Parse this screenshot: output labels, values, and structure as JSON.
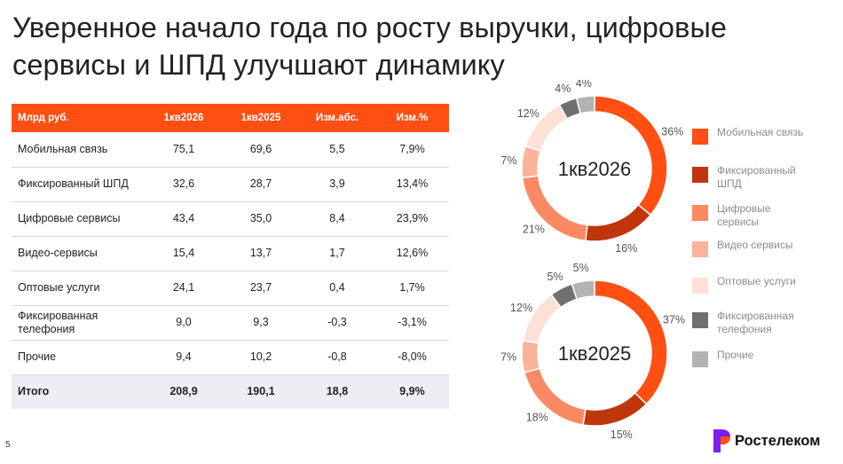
{
  "title": "Уверенное начало года по росту выручки, цифровые сервисы и ШПД улучшают динамику",
  "page_number": "5",
  "logo_text": "Ростелеком",
  "table": {
    "headers": [
      "Млрд руб.",
      "1кв2026",
      "1кв2025",
      "Изм.абс.",
      "Изм.%"
    ],
    "rows": [
      {
        "label": "Мобильная связь",
        "q2026": "75,1",
        "q2025": "69,6",
        "abs": "5,5",
        "pct": "7,9%"
      },
      {
        "label": "Фиксированный ШПД",
        "q2026": "32,6",
        "q2025": "28,7",
        "abs": "3,9",
        "pct": "13,4%"
      },
      {
        "label": "Цифровые сервисы",
        "q2026": "43,4",
        "q2025": "35,0",
        "abs": "8,4",
        "pct": "23,9%"
      },
      {
        "label": "Видео-сервисы",
        "q2026": "15,4",
        "q2025": "13,7",
        "abs": "1,7",
        "pct": "12,6%"
      },
      {
        "label": "Оптовые услуги",
        "q2026": "24,1",
        "q2025": "23,7",
        "abs": "0,4",
        "pct": "1,7%"
      },
      {
        "label": "Фиксированная телефония",
        "q2026": "9,0",
        "q2025": "9,3",
        "abs": "-0,3",
        "pct": "-3,1%"
      },
      {
        "label": "Прочие",
        "q2026": "9,4",
        "q2025": "10,2",
        "abs": "-0,8",
        "pct": "-8,0%"
      }
    ],
    "total": {
      "label": "Итого",
      "q2026": "208,9",
      "q2025": "190,1",
      "abs": "18,8",
      "pct": "9,9%"
    }
  },
  "chart_data": [
    {
      "type": "pie",
      "center_label": "1кв2026",
      "categories": [
        "Мобильная связь",
        "Фиксированный ШПД",
        "Цифровые сервисы",
        "Видео сервисы",
        "Оптовые услуги",
        "Фиксированная телефония",
        "Прочие"
      ],
      "values": [
        36,
        16,
        21,
        7,
        12,
        4,
        4
      ],
      "labels": [
        "36%",
        "16%",
        "21%",
        "7%",
        "12%",
        "4%",
        "4%"
      ],
      "colors": [
        "#ff4f12",
        "#c0360c",
        "#fb8a64",
        "#fdb399",
        "#fde0d6",
        "#707070",
        "#b3b3b3"
      ]
    },
    {
      "type": "pie",
      "center_label": "1кв2025",
      "categories": [
        "Мобильная связь",
        "Фиксированный ШПД",
        "Цифровые сервисы",
        "Видео сервисы",
        "Оптовые услуги",
        "Фиксированная телефония",
        "Прочие"
      ],
      "values": [
        37,
        15,
        18,
        7,
        12,
        5,
        5
      ],
      "labels": [
        "37%",
        "15%",
        "18%",
        "7%",
        "12%",
        "5%",
        "5%"
      ],
      "colors": [
        "#ff4f12",
        "#c0360c",
        "#fb8a64",
        "#fdb399",
        "#fde0d6",
        "#707070",
        "#b3b3b3"
      ]
    }
  ],
  "legend": [
    {
      "label": "Мобильная связь",
      "color": "#ff4f12"
    },
    {
      "label": "Фиксированный ШПД",
      "color": "#c0360c"
    },
    {
      "label": "Цифровые сервисы",
      "color": "#fb8a64"
    },
    {
      "label": "Видео сервисы",
      "color": "#fdb399"
    },
    {
      "label": "Оптовые услуги",
      "color": "#fde0d6"
    },
    {
      "label": "Фиксированная телефония",
      "color": "#707070"
    },
    {
      "label": "Прочие",
      "color": "#b3b3b3"
    }
  ]
}
